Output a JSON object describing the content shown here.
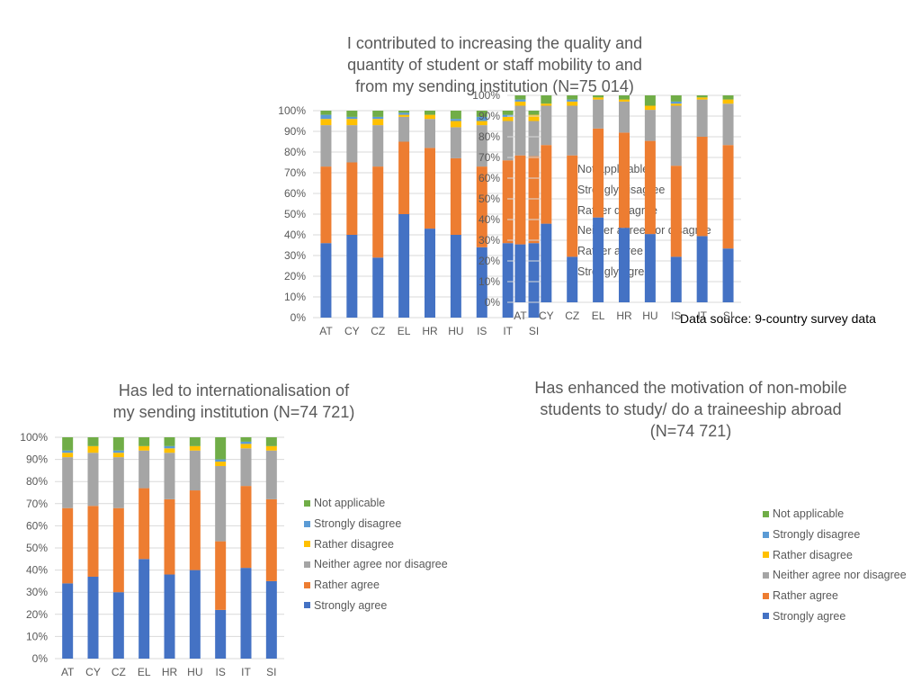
{
  "source_note": "Data source: 9-country survey data",
  "colors": {
    "strongly_agree": "#4472C4",
    "rather_agree": "#ED7D31",
    "neither": "#A5A5A5",
    "rather_disagree": "#FFC000",
    "strongly_disagree": "#5B9BD5",
    "not_applicable": "#70AD47",
    "grid": "#d9d9d9"
  },
  "chart_data": [
    {
      "type": "bar",
      "stacked": true,
      "title": "I contributed to increasing the quality and quantity of student or staff mobility to and from my sending institution (N=75 014)",
      "title_lines": [
        "I contributed to increasing the quality and",
        "quantity of student or staff mobility to and",
        "from my sending institution (N=75 014)"
      ],
      "categories": [
        "AT",
        "CY",
        "CZ",
        "EL",
        "HR",
        "HU",
        "IS",
        "IT",
        "SI"
      ],
      "y_ticks": [
        "0%",
        "10%",
        "20%",
        "30%",
        "40%",
        "50%",
        "60%",
        "70%",
        "80%",
        "90%",
        "100%"
      ],
      "ylim": [
        0,
        100
      ],
      "grid": true,
      "legend_position": "right",
      "series": [
        {
          "name": "Strongly agree",
          "values": [
            36,
            40,
            29,
            50,
            43,
            40,
            34,
            36,
            36
          ]
        },
        {
          "name": "Rather agree",
          "values": [
            37,
            35,
            44,
            35,
            39,
            37,
            39,
            40,
            42
          ]
        },
        {
          "name": "Neither agree nor disagree",
          "values": [
            20,
            18,
            20,
            12,
            14,
            15,
            20,
            19,
            17
          ]
        },
        {
          "name": "Rather disagree",
          "values": [
            3,
            3,
            3,
            1,
            2,
            3,
            2,
            2,
            3
          ]
        },
        {
          "name": "Strongly disagree",
          "values": [
            2,
            1,
            1,
            1,
            0,
            1,
            2,
            1,
            0
          ]
        },
        {
          "name": "Not applicable",
          "values": [
            2,
            3,
            3,
            1,
            2,
            4,
            3,
            2,
            2
          ]
        }
      ]
    },
    {
      "type": "bar",
      "stacked": true,
      "title": "Has led to internationalisation of my sending institution (N=74 721)",
      "title_lines": [
        "Has led to internationalisation of",
        "my sending institution (N=74 721)"
      ],
      "categories": [
        "AT",
        "CY",
        "CZ",
        "EL",
        "HR",
        "HU",
        "IS",
        "IT",
        "SI"
      ],
      "y_ticks": [
        "0%",
        "10%",
        "20%",
        "30%",
        "40%",
        "50%",
        "60%",
        "70%",
        "80%",
        "90%",
        "100%"
      ],
      "ylim": [
        0,
        100
      ],
      "grid": true,
      "legend_position": "right",
      "series": [
        {
          "name": "Strongly agree",
          "values": [
            34,
            37,
            30,
            45,
            38,
            40,
            22,
            41,
            35
          ]
        },
        {
          "name": "Rather agree",
          "values": [
            34,
            32,
            38,
            32,
            34,
            36,
            31,
            37,
            37
          ]
        },
        {
          "name": "Neither agree nor disagree",
          "values": [
            23,
            24,
            23,
            17,
            21,
            18,
            34,
            17,
            22
          ]
        },
        {
          "name": "Rather disagree",
          "values": [
            2,
            3,
            2,
            2,
            2,
            2,
            2,
            2,
            2
          ]
        },
        {
          "name": "Strongly disagree",
          "values": [
            1,
            0,
            1,
            0,
            1,
            0,
            1,
            1,
            0
          ]
        },
        {
          "name": "Not applicable",
          "values": [
            6,
            4,
            6,
            4,
            4,
            4,
            10,
            2,
            4
          ]
        }
      ]
    },
    {
      "type": "bar",
      "stacked": true,
      "title": "Has enhanced the motivation of non-mobile students to study/ do a traineeship abroad (N=74 721)",
      "title_lines": [
        "Has enhanced the motivation of non-mobile",
        "students to study/ do a traineeship abroad",
        "(N=74 721)"
      ],
      "categories": [
        "AT",
        "CY",
        "CZ",
        "EL",
        "HR",
        "HU",
        "IS",
        "IT",
        "SI"
      ],
      "y_ticks": [
        "0%",
        "10%",
        "20%",
        "30%",
        "40%",
        "50%",
        "60%",
        "70%",
        "80%",
        "90%",
        "100%"
      ],
      "ylim": [
        0,
        100
      ],
      "grid": true,
      "legend_position": "right",
      "series": [
        {
          "name": "Strongly agree",
          "values": [
            28,
            38,
            22,
            41,
            36,
            33,
            22,
            32,
            26
          ]
        },
        {
          "name": "Rather agree",
          "values": [
            43,
            38,
            49,
            43,
            46,
            45,
            44,
            48,
            50
          ]
        },
        {
          "name": "Neither agree nor disagree",
          "values": [
            24,
            19,
            24,
            14,
            15,
            15,
            29,
            18,
            20
          ]
        },
        {
          "name": "Rather disagree",
          "values": [
            2,
            1,
            2,
            1,
            1,
            2,
            1,
            1,
            2
          ]
        },
        {
          "name": "Strongly disagree",
          "values": [
            1,
            0,
            1,
            0,
            0,
            0,
            1,
            0,
            0
          ]
        },
        {
          "name": "Not applicable",
          "values": [
            2,
            4,
            2,
            1,
            2,
            5,
            3,
            1,
            2
          ]
        }
      ]
    }
  ]
}
